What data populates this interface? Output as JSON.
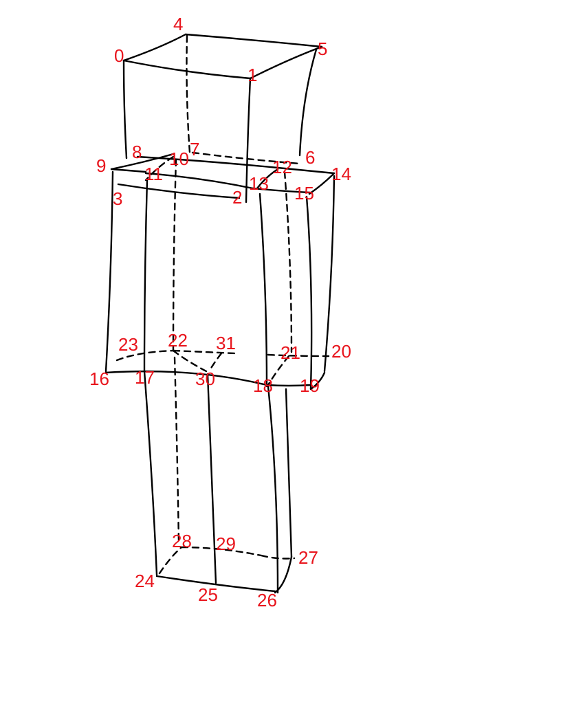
{
  "diagram": {
    "ink_color": "#000000",
    "label_color": "#e8141c",
    "vertices": [
      {
        "id": "0",
        "label": "0"
      },
      {
        "id": "1",
        "label": "1"
      },
      {
        "id": "2",
        "label": "2"
      },
      {
        "id": "3",
        "label": "3"
      },
      {
        "id": "4",
        "label": "4"
      },
      {
        "id": "5",
        "label": "5"
      },
      {
        "id": "6",
        "label": "6"
      },
      {
        "id": "7",
        "label": "7"
      },
      {
        "id": "8",
        "label": "8"
      },
      {
        "id": "9",
        "label": "9"
      },
      {
        "id": "10",
        "label": "10"
      },
      {
        "id": "11",
        "label": "11"
      },
      {
        "id": "12",
        "label": "12"
      },
      {
        "id": "13",
        "label": "13"
      },
      {
        "id": "14",
        "label": "14"
      },
      {
        "id": "15",
        "label": "15"
      },
      {
        "id": "16",
        "label": "16"
      },
      {
        "id": "17",
        "label": "17"
      },
      {
        "id": "18",
        "label": "18"
      },
      {
        "id": "19",
        "label": "19"
      },
      {
        "id": "20",
        "label": "20"
      },
      {
        "id": "21",
        "label": "21"
      },
      {
        "id": "22",
        "label": "22"
      },
      {
        "id": "23",
        "label": "23"
      },
      {
        "id": "24",
        "label": "24"
      },
      {
        "id": "25",
        "label": "25"
      },
      {
        "id": "26",
        "label": "26"
      },
      {
        "id": "27",
        "label": "27"
      },
      {
        "id": "28",
        "label": "28"
      },
      {
        "id": "29",
        "label": "29"
      },
      {
        "id": "30",
        "label": "30"
      },
      {
        "id": "31",
        "label": "31"
      }
    ]
  }
}
